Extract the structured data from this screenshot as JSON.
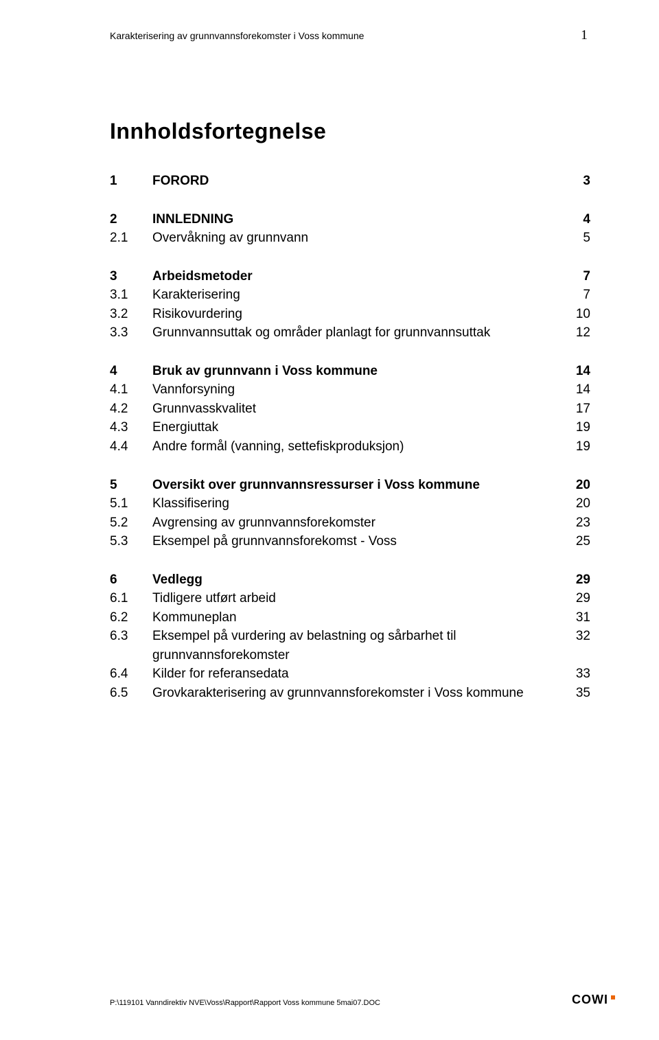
{
  "header": {
    "running_title": "Karakterisering av grunnvannsforekomster i Voss kommune",
    "page_number": "1"
  },
  "toc": {
    "title": "Innholdsfortegnelse",
    "sections": [
      {
        "entries": [
          {
            "num": "1",
            "text": "FORORD",
            "page": "3",
            "bold": true
          }
        ]
      },
      {
        "entries": [
          {
            "num": "2",
            "text": "INNLEDNING",
            "page": "4",
            "bold": true
          },
          {
            "num": "2.1",
            "text": "Overvåkning av grunnvann",
            "page": "5",
            "bold": false
          }
        ]
      },
      {
        "entries": [
          {
            "num": "3",
            "text": "Arbeidsmetoder",
            "page": "7",
            "bold": true
          },
          {
            "num": "3.1",
            "text": "Karakterisering",
            "page": "7",
            "bold": false
          },
          {
            "num": "3.2",
            "text": "Risikovurdering",
            "page": "10",
            "bold": false
          },
          {
            "num": "3.3",
            "text": "Grunnvannsuttak og områder planlagt for grunnvannsuttak",
            "page": "12",
            "bold": false
          }
        ]
      },
      {
        "entries": [
          {
            "num": "4",
            "text": "Bruk av grunnvann i Voss kommune",
            "page": "14",
            "bold": true
          },
          {
            "num": "4.1",
            "text": "Vannforsyning",
            "page": "14",
            "bold": false
          },
          {
            "num": "4.2",
            "text": "Grunnvasskvalitet",
            "page": "17",
            "bold": false
          },
          {
            "num": "4.3",
            "text": "Energiuttak",
            "page": "19",
            "bold": false
          },
          {
            "num": "4.4",
            "text": "Andre formål (vanning, settefiskproduksjon)",
            "page": "19",
            "bold": false
          }
        ]
      },
      {
        "entries": [
          {
            "num": "5",
            "text": "Oversikt over grunnvannsressurser i Voss kommune",
            "page": "20",
            "bold": true
          },
          {
            "num": "5.1",
            "text": "Klassifisering",
            "page": "20",
            "bold": false
          },
          {
            "num": "5.2",
            "text": "Avgrensing av grunnvannsforekomster",
            "page": "23",
            "bold": false
          },
          {
            "num": "5.3",
            "text": "Eksempel på grunnvannsforekomst - Voss",
            "page": "25",
            "bold": false
          }
        ]
      },
      {
        "entries": [
          {
            "num": "6",
            "text": "Vedlegg",
            "page": "29",
            "bold": true
          },
          {
            "num": "6.1",
            "text": "Tidligere utført arbeid",
            "page": "29",
            "bold": false
          },
          {
            "num": "6.2",
            "text": "Kommuneplan",
            "page": "31",
            "bold": false
          },
          {
            "num": "6.3",
            "text": "Eksempel på vurdering av belastning og sårbarhet til grunnvannsforekomster",
            "page": "32",
            "bold": false
          },
          {
            "num": "6.4",
            "text": "Kilder for referansedata",
            "page": "33",
            "bold": false
          },
          {
            "num": "6.5",
            "text": "Grovkarakterisering av grunnvannsforekomster i Voss kommune",
            "page": "35",
            "bold": false
          }
        ]
      }
    ]
  },
  "footer": {
    "doc_path": "P:\\119101 Vanndirektiv NVE\\Voss\\Rapport\\Rapport Voss kommune 5mai07.DOC",
    "logo_text": "COWI",
    "logo_dot_color": "#ec6608"
  },
  "colors": {
    "text": "#000000",
    "background": "#ffffff"
  },
  "typography": {
    "body_font": "Arial",
    "title_font": "Arial",
    "title_weight": 900,
    "title_size_pt": 24,
    "entry_size_pt": 14,
    "header_size_pt": 10,
    "footer_size_pt": 8
  }
}
